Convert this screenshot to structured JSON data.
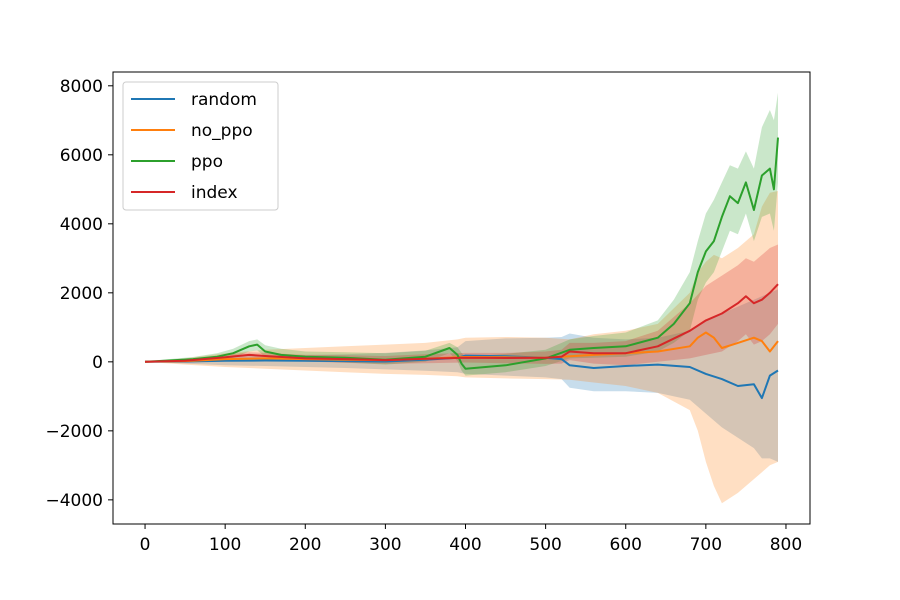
{
  "chart_data": {
    "type": "line",
    "title": "",
    "xlabel": "",
    "ylabel": "",
    "xlim": [
      -40,
      830
    ],
    "ylim": [
      -4700,
      8400
    ],
    "xticks": [
      0,
      100,
      200,
      300,
      400,
      500,
      600,
      700,
      800
    ],
    "yticks": [
      -4000,
      -2000,
      0,
      2000,
      4000,
      6000,
      8000
    ],
    "grid": false,
    "legend_position": "upper-left",
    "legend": [
      "random",
      "no_ppo",
      "ppo",
      "index"
    ],
    "series": [
      {
        "name": "random",
        "color": "#1f77b4",
        "x": [
          0,
          50,
          100,
          150,
          200,
          250,
          300,
          350,
          390,
          400,
          450,
          500,
          520,
          530,
          560,
          600,
          640,
          680,
          700,
          720,
          740,
          760,
          770,
          780,
          790
        ],
        "y": [
          0,
          10,
          30,
          40,
          30,
          20,
          10,
          60,
          120,
          180,
          160,
          120,
          80,
          -100,
          -180,
          -120,
          -80,
          -150,
          -350,
          -500,
          -700,
          -650,
          -1050,
          -400,
          -250
        ],
        "band_upper": [
          0,
          60,
          140,
          180,
          200,
          220,
          260,
          330,
          420,
          600,
          680,
          700,
          720,
          820,
          700,
          650,
          700,
          900,
          1200,
          1400,
          1600,
          1800,
          1900,
          2000,
          2100
        ],
        "band_lower": [
          0,
          -50,
          -100,
          -120,
          -150,
          -180,
          -220,
          -260,
          -300,
          -350,
          -400,
          -450,
          -500,
          -750,
          -850,
          -850,
          -900,
          -1100,
          -1500,
          -1900,
          -2200,
          -2500,
          -2800,
          -2800,
          -2900
        ]
      },
      {
        "name": "no_ppo",
        "color": "#ff7f0e",
        "x": [
          0,
          50,
          100,
          150,
          200,
          250,
          300,
          350,
          390,
          400,
          450,
          500,
          530,
          560,
          600,
          640,
          680,
          690,
          700,
          710,
          720,
          740,
          760,
          770,
          780,
          790
        ],
        "y": [
          0,
          20,
          80,
          100,
          80,
          60,
          50,
          90,
          130,
          140,
          130,
          120,
          160,
          200,
          250,
          300,
          450,
          700,
          850,
          700,
          400,
          550,
          700,
          600,
          300,
          600
        ],
        "band_upper": [
          0,
          100,
          250,
          350,
          400,
          450,
          500,
          550,
          650,
          700,
          720,
          700,
          650,
          800,
          900,
          1100,
          2000,
          2600,
          2900,
          3100,
          3000,
          3300,
          3700,
          4500,
          4900,
          4950
        ],
        "band_lower": [
          0,
          -80,
          -150,
          -200,
          -250,
          -300,
          -350,
          -380,
          -420,
          -450,
          -480,
          -500,
          -520,
          -600,
          -700,
          -900,
          -1400,
          -2000,
          -2900,
          -3600,
          -4100,
          -3800,
          -3400,
          -3200,
          -3000,
          -2900
        ]
      },
      {
        "name": "ppo",
        "color": "#2ca02c",
        "x": [
          0,
          30,
          60,
          90,
          110,
          130,
          140,
          150,
          170,
          200,
          250,
          300,
          350,
          380,
          390,
          395,
          400,
          450,
          500,
          530,
          560,
          600,
          640,
          660,
          680,
          690,
          700,
          710,
          720,
          730,
          740,
          750,
          760,
          770,
          780,
          785,
          790
        ],
        "y": [
          0,
          40,
          80,
          150,
          250,
          450,
          500,
          300,
          200,
          150,
          120,
          60,
          150,
          400,
          200,
          -50,
          -200,
          -100,
          100,
          350,
          400,
          450,
          700,
          1100,
          1700,
          2600,
          3200,
          3500,
          4200,
          4800,
          4600,
          5200,
          4400,
          5400,
          5600,
          5000,
          6500
        ],
        "band_upper": [
          0,
          80,
          140,
          250,
          380,
          600,
          650,
          480,
          380,
          300,
          280,
          250,
          320,
          550,
          420,
          260,
          150,
          230,
          350,
          650,
          750,
          850,
          1200,
          1800,
          2600,
          3500,
          4300,
          4700,
          5200,
          5700,
          5600,
          6100,
          5600,
          6800,
          7300,
          7000,
          7800
        ],
        "band_lower": [
          0,
          0,
          20,
          50,
          120,
          300,
          330,
          150,
          50,
          20,
          -20,
          -80,
          0,
          250,
          20,
          -250,
          -400,
          -300,
          -120,
          100,
          120,
          150,
          300,
          550,
          900,
          1800,
          2300,
          2600,
          3200,
          3800,
          3700,
          4300,
          3500,
          4200,
          4300,
          3800,
          5200
        ]
      },
      {
        "name": "index",
        "color": "#d62728",
        "x": [
          0,
          50,
          100,
          130,
          150,
          200,
          250,
          300,
          350,
          400,
          450,
          500,
          520,
          530,
          560,
          600,
          640,
          680,
          700,
          720,
          740,
          750,
          760,
          770,
          780,
          790
        ],
        "y": [
          0,
          30,
          130,
          200,
          170,
          100,
          80,
          50,
          90,
          120,
          110,
          120,
          150,
          300,
          250,
          250,
          450,
          900,
          1200,
          1400,
          1700,
          1900,
          1700,
          1800,
          2000,
          2250
        ],
        "band_upper": [
          0,
          60,
          200,
          280,
          260,
          200,
          190,
          170,
          220,
          260,
          260,
          300,
          350,
          550,
          550,
          600,
          900,
          1700,
          2200,
          2500,
          2800,
          3000,
          2900,
          3100,
          3300,
          3400
        ],
        "band_lower": [
          0,
          0,
          60,
          120,
          90,
          10,
          -30,
          -60,
          -40,
          -20,
          -40,
          -60,
          -50,
          50,
          -50,
          -100,
          0,
          100,
          200,
          300,
          600,
          800,
          500,
          600,
          800,
          1100
        ]
      }
    ]
  }
}
